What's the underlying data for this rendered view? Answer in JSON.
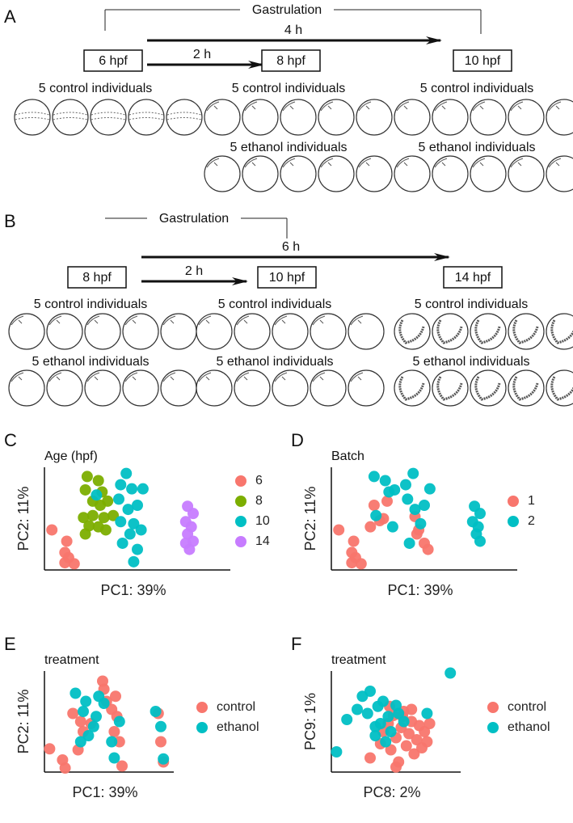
{
  "panels": [
    {
      "label": "A",
      "phase": "Gastrulation",
      "arrows": [
        "4 h",
        "2 h"
      ],
      "stages": [
        {
          "label": "6 hpf",
          "groups": [
            "5 control individuals"
          ]
        },
        {
          "label": "8 hpf",
          "groups": [
            "5 control individuals",
            "5 ethanol individuals"
          ]
        },
        {
          "label": "10 hpf",
          "groups": [
            "5 control individuals",
            "5 ethanol individuals"
          ]
        }
      ]
    },
    {
      "label": "B",
      "phase": "Gastrulation",
      "arrows": [
        "6 h",
        "2 h"
      ],
      "stages": [
        {
          "label": "8 hpf",
          "groups": [
            "5 control individuals",
            "5 ethanol individuals"
          ]
        },
        {
          "label": "10 hpf",
          "groups": [
            "5 control individuals",
            "5 ethanol individuals"
          ]
        },
        {
          "label": "14 hpf",
          "groups": [
            "5 control individuals",
            "5 ethanol individuals"
          ]
        }
      ]
    }
  ],
  "chart_data": [
    {
      "panel": "C",
      "type": "scatter",
      "title": "Age (hpf)",
      "xlabel": "PC1: 39%",
      "ylabel": "PC2: 11%",
      "xlim": [
        0,
        100
      ],
      "ylim": [
        0,
        100
      ],
      "series": [
        {
          "name": "6",
          "color": "#f8766d",
          "x": [
            4,
            12,
            11,
            13,
            16,
            11
          ],
          "y": [
            39,
            28,
            17,
            12,
            6,
            7
          ]
        },
        {
          "name": "8",
          "color": "#7cae00",
          "x": [
            23,
            29,
            22,
            31,
            26,
            34,
            21,
            26,
            32,
            37,
            24,
            29,
            33,
            22,
            30
          ],
          "y": [
            91,
            87,
            78,
            76,
            67,
            67,
            51,
            53,
            51,
            53,
            43,
            42,
            39,
            35,
            63
          ]
        },
        {
          "name": "10",
          "color": "#00bfc4",
          "x": [
            44,
            41,
            47,
            40,
            45,
            50,
            41,
            48,
            46,
            52,
            42,
            50,
            48,
            28,
            53
          ],
          "y": [
            94,
            83,
            79,
            69,
            59,
            63,
            47,
            45,
            35,
            39,
            26,
            20,
            8,
            73,
            79
          ]
        },
        {
          "name": "14",
          "color": "#c77cff",
          "x": [
            77,
            80,
            76,
            79,
            77,
            80,
            78,
            76
          ],
          "y": [
            62,
            55,
            47,
            42,
            35,
            28,
            20,
            26
          ]
        }
      ]
    },
    {
      "panel": "D",
      "type": "scatter",
      "title": "Batch",
      "xlabel": "PC1: 39%",
      "ylabel": "PC2: 11%",
      "xlim": [
        0,
        100
      ],
      "ylim": [
        0,
        100
      ],
      "series": [
        {
          "name": "1",
          "color": "#f8766d",
          "x": [
            4,
            12,
            11,
            13,
            16,
            11,
            23,
            30,
            26,
            21,
            28,
            45,
            46,
            47,
            50,
            52
          ],
          "y": [
            39,
            28,
            17,
            12,
            6,
            7,
            63,
            67,
            48,
            42,
            50,
            52,
            35,
            39,
            26,
            20
          ]
        },
        {
          "name": "2",
          "color": "#00bfc4",
          "x": [
            23,
            29,
            31,
            34,
            40,
            44,
            41,
            45,
            48,
            42,
            50,
            53,
            77,
            80,
            76,
            79,
            78,
            80,
            24,
            33
          ],
          "y": [
            91,
            87,
            76,
            78,
            83,
            94,
            69,
            59,
            45,
            26,
            63,
            79,
            62,
            55,
            47,
            42,
            35,
            28,
            53,
            42
          ]
        }
      ]
    },
    {
      "panel": "E",
      "type": "scatter",
      "title": "treatment",
      "xlabel": "PC1: 39%",
      "ylabel": "PC2: 11%",
      "xlim": [
        0,
        100
      ],
      "ylim": [
        0,
        100
      ],
      "series": [
        {
          "name": "control",
          "color": "#f8766d",
          "x": [
            4,
            14,
            16,
            22,
            28,
            30,
            26,
            36,
            45,
            46,
            48,
            52,
            56,
            54,
            58,
            60,
            55,
            88,
            90,
            92
          ],
          "y": [
            23,
            12,
            4,
            58,
            50,
            40,
            22,
            48,
            90,
            82,
            70,
            62,
            55,
            40,
            30,
            6,
            75,
            58,
            30,
            10
          ]
        },
        {
          "name": "ethanol",
          "color": "#00bfc4",
          "x": [
            24,
            30,
            34,
            28,
            40,
            42,
            38,
            46,
            52,
            58,
            54,
            86,
            90,
            92,
            32
          ],
          "y": [
            78,
            60,
            36,
            30,
            55,
            75,
            45,
            68,
            30,
            50,
            14,
            60,
            45,
            13,
            70
          ]
        }
      ]
    },
    {
      "panel": "F",
      "type": "scatter",
      "title": "treatment",
      "xlabel": "PC8: 2%",
      "ylabel": "PC9: 1%",
      "xlim": [
        0,
        100
      ],
      "ylim": [
        0,
        100
      ],
      "series": [
        {
          "name": "control",
          "color": "#f8766d",
          "x": [
            30,
            38,
            40,
            44,
            46,
            48,
            50,
            52,
            54,
            56,
            58,
            60,
            62,
            64,
            66,
            68,
            70,
            72,
            74,
            76,
            50,
            45,
            55,
            62
          ],
          "y": [
            14,
            28,
            40,
            48,
            22,
            56,
            34,
            10,
            44,
            60,
            26,
            38,
            50,
            18,
            32,
            46,
            24,
            40,
            30,
            48,
            5,
            65,
            55,
            62
          ]
        },
        {
          "name": "ethanol",
          "color": "#00bfc4",
          "x": [
            4,
            12,
            20,
            24,
            28,
            30,
            34,
            36,
            38,
            40,
            44,
            46,
            50,
            52,
            56,
            74,
            92,
            34,
            42
          ],
          "y": [
            20,
            52,
            62,
            75,
            58,
            80,
            36,
            65,
            48,
            70,
            55,
            40,
            66,
            58,
            50,
            58,
            98,
            45,
            30
          ]
        }
      ]
    }
  ]
}
